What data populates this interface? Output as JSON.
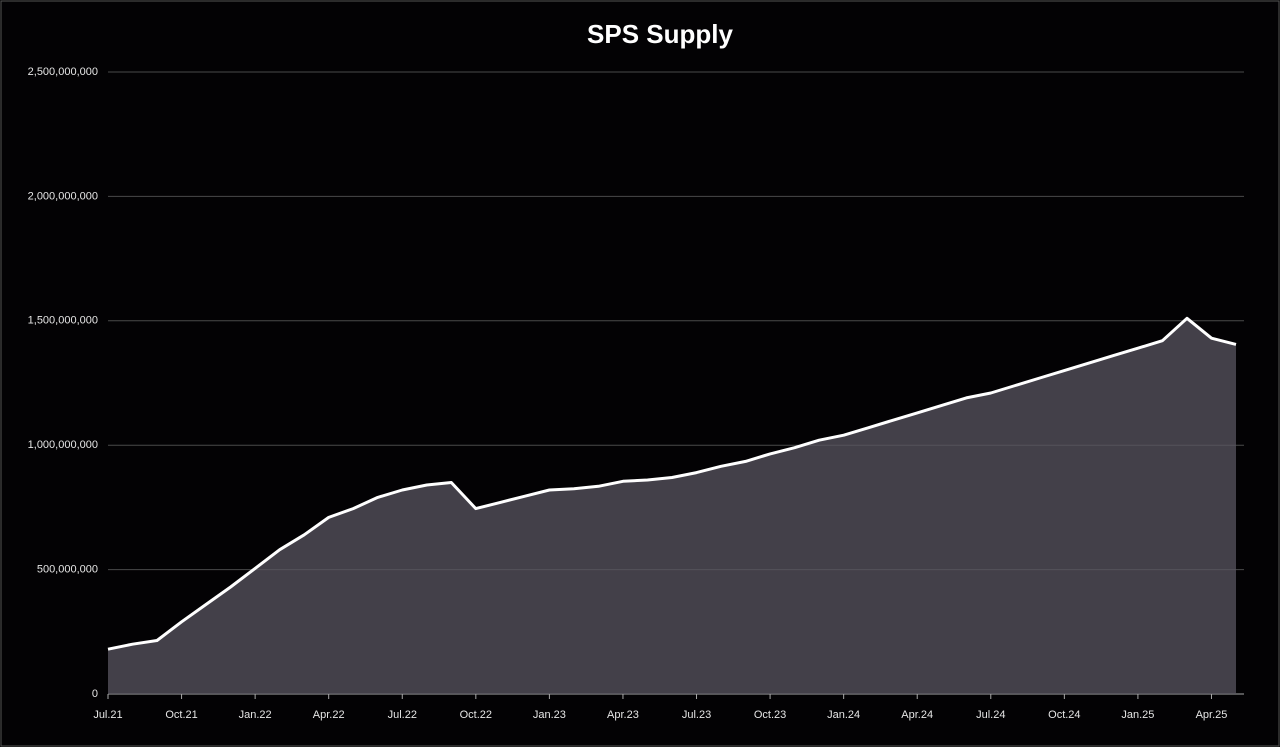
{
  "chart_data": {
    "type": "line",
    "title": "SPS Supply",
    "x": [
      "2021-07",
      "2021-08",
      "2021-09",
      "2021-10",
      "2021-11",
      "2021-12",
      "2022-01",
      "2022-02",
      "2022-03",
      "2022-04",
      "2022-05",
      "2022-06",
      "2022-07",
      "2022-08",
      "2022-09",
      "2022-10",
      "2022-11",
      "2022-12",
      "2023-01",
      "2023-02",
      "2023-03",
      "2023-04",
      "2023-05",
      "2023-06",
      "2023-07",
      "2023-08",
      "2023-09",
      "2023-10",
      "2023-11",
      "2023-12",
      "2024-01",
      "2024-02",
      "2024-03",
      "2024-04",
      "2024-05",
      "2024-06",
      "2024-07",
      "2024-08",
      "2024-09",
      "2024-10",
      "2024-11",
      "2024-12",
      "2025-01",
      "2025-02",
      "2025-03",
      "2025-04",
      "2025-05"
    ],
    "series": [
      {
        "name": "SPS Supply",
        "color": "#ffffff",
        "values": [
          180000000,
          200000000,
          215000000,
          290000000,
          360000000,
          430000000,
          505000000,
          580000000,
          640000000,
          710000000,
          745000000,
          790000000,
          820000000,
          840000000,
          850000000,
          745000000,
          770000000,
          795000000,
          820000000,
          825000000,
          835000000,
          855000000,
          860000000,
          870000000,
          890000000,
          915000000,
          935000000,
          965000000,
          990000000,
          1020000000,
          1040000000,
          1070000000,
          1100000000,
          1130000000,
          1160000000,
          1190000000,
          1210000000,
          1240000000,
          1270000000,
          1300000000,
          1330000000,
          1360000000,
          1390000000,
          1420000000,
          1510000000,
          1430000000,
          1405000000
        ]
      }
    ],
    "xlim": [
      "2021-07",
      "2025-05"
    ],
    "xticks": [
      {
        "value": "2021-07",
        "label": "Jul.21"
      },
      {
        "value": "2021-10",
        "label": "Oct.21"
      },
      {
        "value": "2022-01",
        "label": "Jan.22"
      },
      {
        "value": "2022-04",
        "label": "Apr.22"
      },
      {
        "value": "2022-07",
        "label": "Jul.22"
      },
      {
        "value": "2022-10",
        "label": "Oct.22"
      },
      {
        "value": "2023-01",
        "label": "Jan.23"
      },
      {
        "value": "2023-04",
        "label": "Apr.23"
      },
      {
        "value": "2023-07",
        "label": "Jul.23"
      },
      {
        "value": "2023-10",
        "label": "Oct.23"
      },
      {
        "value": "2024-01",
        "label": "Jan.24"
      },
      {
        "value": "2024-04",
        "label": "Apr.24"
      },
      {
        "value": "2024-07",
        "label": "Jul.24"
      },
      {
        "value": "2024-10",
        "label": "Oct.24"
      },
      {
        "value": "2025-01",
        "label": "Jan.25"
      },
      {
        "value": "2025-04",
        "label": "Apr.25"
      }
    ],
    "ylim": [
      0,
      2500000000
    ],
    "yticks": [
      0,
      {
        "value": 500000000,
        "label": "500,000,000"
      },
      {
        "value": 1000000000,
        "label": "1,000,000,000"
      },
      {
        "value": 1500000000,
        "label": "1,500,000,000"
      },
      {
        "value": 2000000000,
        "label": "2,000,000,000"
      },
      {
        "value": 2500000000,
        "label": "2,500,000,000"
      }
    ],
    "grid": true,
    "area_fill": "#5a5560"
  }
}
